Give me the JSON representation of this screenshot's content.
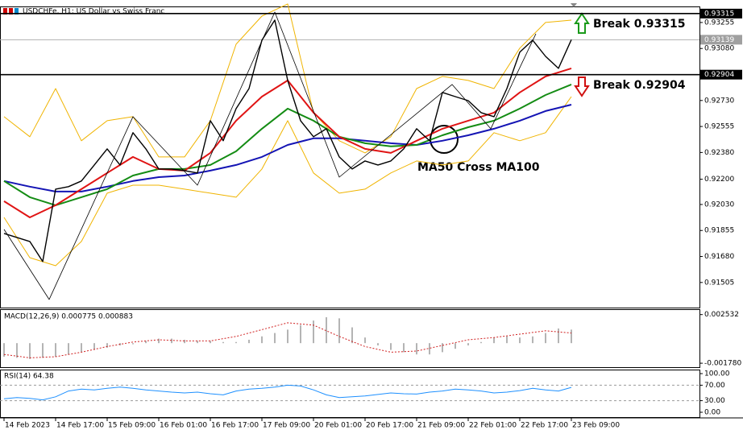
{
  "chart_data": [
    {
      "type": "line",
      "title": "USDCHFe, H1: US Dollar vs Swiss Franc",
      "annotations": [
        "Break 0.93315",
        "Break 0.92904",
        "MA50 Cross MA100"
      ],
      "xlim": [
        -1.25,
        215.75
      ],
      "xticks": [
        {
          "value": 0,
          "label": "14 Feb 2023"
        },
        {
          "value": 16,
          "label": "14 Feb 17:00"
        },
        {
          "value": 32,
          "label": "15 Feb 09:00"
        },
        {
          "value": 48,
          "label": "16 Feb 01:00"
        },
        {
          "value": 64,
          "label": "16 Feb 17:00"
        },
        {
          "value": 80,
          "label": "17 Feb 09:00"
        },
        {
          "value": 96,
          "label": "20 Feb 01:00"
        },
        {
          "value": 112,
          "label": "20 Feb 17:00"
        },
        {
          "value": 128,
          "label": "21 Feb 09:00"
        },
        {
          "value": 144,
          "label": "22 Feb 01:00"
        },
        {
          "value": 160,
          "label": "22 Feb 17:00"
        },
        {
          "value": 176,
          "label": "23 Feb 09:00"
        }
      ],
      "ylim": [
        0.91336,
        0.93363
      ],
      "yticks": [
        0.93255,
        {
          "value": 0.9308,
          "label": "0.93080"
        },
        {
          "value": 0.9273,
          "label": "0.92730"
        },
        0.92555,
        {
          "value": 0.9238,
          "label": "0.92380"
        },
        {
          "value": 0.922,
          "label": "0.92200"
        },
        {
          "value": 0.9203,
          "label": "0.92030"
        },
        0.91855,
        {
          "value": 0.9168,
          "label": "0.91680"
        },
        0.91505
      ],
      "hlines": [
        0.93315,
        0.92904
      ],
      "current_price": 0.93139,
      "series": [
        {
          "color": "#f0b400",
          "width": 1,
          "x": [
            0,
            8,
            16,
            24,
            32,
            40,
            48,
            56,
            64,
            72,
            80,
            88,
            96,
            104,
            112,
            120,
            128,
            136,
            144,
            152,
            160,
            168,
            176
          ],
          "values": [
            0.92621,
            0.92486,
            0.9281,
            0.92459,
            0.92594,
            0.92621,
            0.9235,
            0.9235,
            0.92594,
            0.93109,
            0.93298,
            0.9338,
            0.92648,
            0.92459,
            0.92377,
            0.92486,
            0.9281,
            0.92892,
            0.92865,
            0.9281,
            0.93082,
            0.93255,
            0.93271
          ]
        },
        {
          "color": "#f0b400",
          "width": 1,
          "x": [
            0,
            8,
            16,
            24,
            32,
            40,
            48,
            56,
            64,
            72,
            80,
            88,
            96,
            104,
            112,
            120,
            128,
            136,
            144,
            152,
            160,
            168,
            176
          ],
          "values": [
            0.91943,
            0.91672,
            0.91618,
            0.91781,
            0.92106,
            0.9216,
            0.9216,
            0.92133,
            0.92106,
            0.92079,
            0.92269,
            0.92594,
            0.92242,
            0.92106,
            0.92133,
            0.92242,
            0.92323,
            0.92296,
            0.92323,
            0.92513,
            0.92459,
            0.92513,
            0.92756
          ]
        },
        {
          "color": "#1414b4",
          "width": 2,
          "x": [
            0,
            8,
            16,
            24,
            32,
            40,
            48,
            56,
            64,
            72,
            80,
            88,
            96,
            104,
            112,
            120,
            128,
            136,
            144,
            152,
            160,
            168,
            176
          ],
          "values": [
            0.92188,
            0.9215,
            0.92117,
            0.92117,
            0.9215,
            0.92188,
            0.92214,
            0.92225,
            0.92258,
            0.92296,
            0.9235,
            0.92431,
            0.92475,
            0.92475,
            0.92459,
            0.92442,
            0.92431,
            0.92459,
            0.92496,
            0.9254,
            0.92594,
            0.92659,
            0.92702
          ]
        },
        {
          "color": "#148c14",
          "width": 2,
          "x": [
            0,
            8,
            16,
            24,
            32,
            40,
            48,
            56,
            64,
            72,
            80,
            88,
            96,
            104,
            112,
            120,
            128,
            136,
            144,
            152,
            160,
            168,
            176
          ],
          "values": [
            0.92188,
            0.92079,
            0.92025,
            0.92079,
            0.92133,
            0.92225,
            0.92269,
            0.92269,
            0.92296,
            0.92388,
            0.9254,
            0.92675,
            0.92594,
            0.92486,
            0.92442,
            0.92421,
            0.92431,
            0.92496,
            0.9255,
            0.92594,
            0.92675,
            0.92767,
            0.92838
          ]
        },
        {
          "color": "#e01414",
          "width": 2,
          "x": [
            0,
            8,
            16,
            24,
            32,
            40,
            48,
            56,
            64,
            72,
            80,
            88,
            96,
            104,
            112,
            120,
            128,
            136,
            144,
            152,
            160,
            168,
            176
          ],
          "values": [
            0.92052,
            0.91943,
            0.92025,
            0.92133,
            0.92242,
            0.9235,
            0.92269,
            0.92258,
            0.92377,
            0.92594,
            0.92756,
            0.92865,
            0.92648,
            0.92486,
            0.92404,
            0.92377,
            0.92459,
            0.9254,
            0.92594,
            0.92648,
            0.92784,
            0.92892,
            0.92946
          ]
        },
        {
          "color": "#000000",
          "width": 0.8,
          "x": [
            0,
            14,
            40,
            60,
            84,
            104,
            139,
            151,
            165
          ],
          "values": [
            0.91862,
            0.91391,
            0.92621,
            0.9216,
            0.93325,
            0.92214,
            0.92838,
            0.9254,
            0.93179
          ]
        },
        {
          "color": "#000000",
          "width": 1.4,
          "x": [
            0,
            4,
            8,
            12,
            16,
            20,
            24,
            28,
            32,
            36,
            40,
            44,
            48,
            52,
            56,
            60,
            64,
            68,
            72,
            76,
            80,
            84,
            88,
            92,
            96,
            100,
            104,
            108,
            112,
            116,
            120,
            124,
            128,
            132,
            136,
            140,
            144,
            148,
            152,
            156,
            160,
            164,
            168,
            172,
            176
          ],
          "values": [
            0.91835,
            0.91808,
            0.91781,
            0.91646,
            0.92133,
            0.9215,
            0.92188,
            0.92296,
            0.92404,
            0.92296,
            0.92513,
            0.92404,
            0.92269,
            0.92269,
            0.92258,
            0.92242,
            0.92594,
            0.92459,
            0.92675,
            0.9281,
            0.93136,
            0.93271,
            0.92865,
            0.92594,
            0.92486,
            0.9254,
            0.9235,
            0.92269,
            0.92323,
            0.92296,
            0.92323,
            0.92404,
            0.9254,
            0.92459,
            0.92784,
            0.92756,
            0.92729,
            0.92648,
            0.92621,
            0.9281,
            0.93055,
            0.93136,
            0.93027,
            0.92946,
            0.93139
          ]
        }
      ]
    },
    {
      "type": "line",
      "label": "MACD(12,26,9) 0.000775 0.000883",
      "ylim": [
        -0.00213,
        0.00301
      ],
      "yticks": [
        {
          "value": 0.002532,
          "label": "0.002532"
        },
        {
          "value": -0.00178,
          "label": "-0.001780"
        }
      ],
      "series": [
        {
          "type": "bar",
          "color": "#b4b4b4",
          "width": 2,
          "x": [
            0,
            4,
            8,
            12,
            16,
            20,
            24,
            28,
            32,
            36,
            40,
            44,
            48,
            52,
            56,
            60,
            64,
            68,
            72,
            76,
            80,
            84,
            88,
            92,
            96,
            100,
            104,
            108,
            112,
            116,
            120,
            124,
            128,
            132,
            136,
            140,
            144,
            148,
            152,
            156,
            160,
            164,
            168,
            172,
            176
          ],
          "values": [
            -0.0012,
            -0.0013,
            -0.0014,
            -0.0013,
            -0.0012,
            -0.001,
            -0.0008,
            -0.0006,
            -0.0004,
            -0.0002,
            -0.0001,
            0.0002,
            0.0004,
            0.0004,
            0.0003,
            0.0002,
            0.0002,
            0.0001,
            0.0001,
            0.0003,
            0.0006,
            0.0009,
            0.0012,
            0.0016,
            0.002,
            0.0023,
            0.0022,
            0.0014,
            0.0005,
            -0.0002,
            -0.0006,
            -0.0008,
            -0.001,
            -0.001,
            -0.0008,
            -0.0005,
            -0.0002,
            0.0001,
            0.0005,
            0.0006,
            0.0005,
            0.0006,
            0.0009,
            0.0013,
            0.0012
          ]
        },
        {
          "type": "line",
          "dashed": true,
          "color": "#d02020",
          "width": 1,
          "x": [
            0,
            8,
            16,
            24,
            32,
            40,
            48,
            56,
            64,
            72,
            80,
            88,
            96,
            104,
            112,
            120,
            128,
            136,
            144,
            152,
            160,
            168,
            176
          ],
          "values": [
            -0.001,
            -0.0013,
            -0.0012,
            -0.0008,
            -0.0003,
            0.0001,
            0.0003,
            0.0002,
            0.0002,
            0.0006,
            0.0012,
            0.0018,
            0.0016,
            0.0006,
            -0.0003,
            -0.0008,
            -0.0007,
            -0.0002,
            0.0003,
            0.0005,
            0.0008,
            0.0011,
            0.0009
          ]
        }
      ]
    },
    {
      "type": "line",
      "label": "RSI(14) 64.38",
      "ylim": [
        -12.5,
        110.4
      ],
      "yticks": [
        {
          "value": 100,
          "label": "100.00"
        },
        {
          "value": 70,
          "label": "70.00"
        },
        {
          "value": 30,
          "label": "30.00"
        },
        {
          "value": 0,
          "label": "0.00"
        }
      ],
      "grid": true,
      "series": [
        {
          "type": "line",
          "color": "#1e90ff",
          "width": 1,
          "x": [
            0,
            4,
            8,
            12,
            16,
            20,
            24,
            28,
            32,
            36,
            40,
            44,
            48,
            52,
            56,
            60,
            64,
            68,
            72,
            76,
            80,
            84,
            88,
            92,
            96,
            100,
            104,
            108,
            112,
            116,
            120,
            124,
            128,
            132,
            136,
            140,
            144,
            148,
            152,
            156,
            160,
            164,
            168,
            172,
            176
          ],
          "values": [
            35,
            38,
            36,
            32,
            40,
            55,
            60,
            58,
            62,
            65,
            62,
            58,
            55,
            52,
            50,
            52,
            48,
            45,
            55,
            60,
            62,
            65,
            70,
            68,
            58,
            45,
            38,
            40,
            42,
            46,
            50,
            48,
            47,
            52,
            55,
            60,
            58,
            55,
            50,
            52,
            56,
            62,
            58,
            55,
            64.38
          ]
        }
      ]
    }
  ]
}
